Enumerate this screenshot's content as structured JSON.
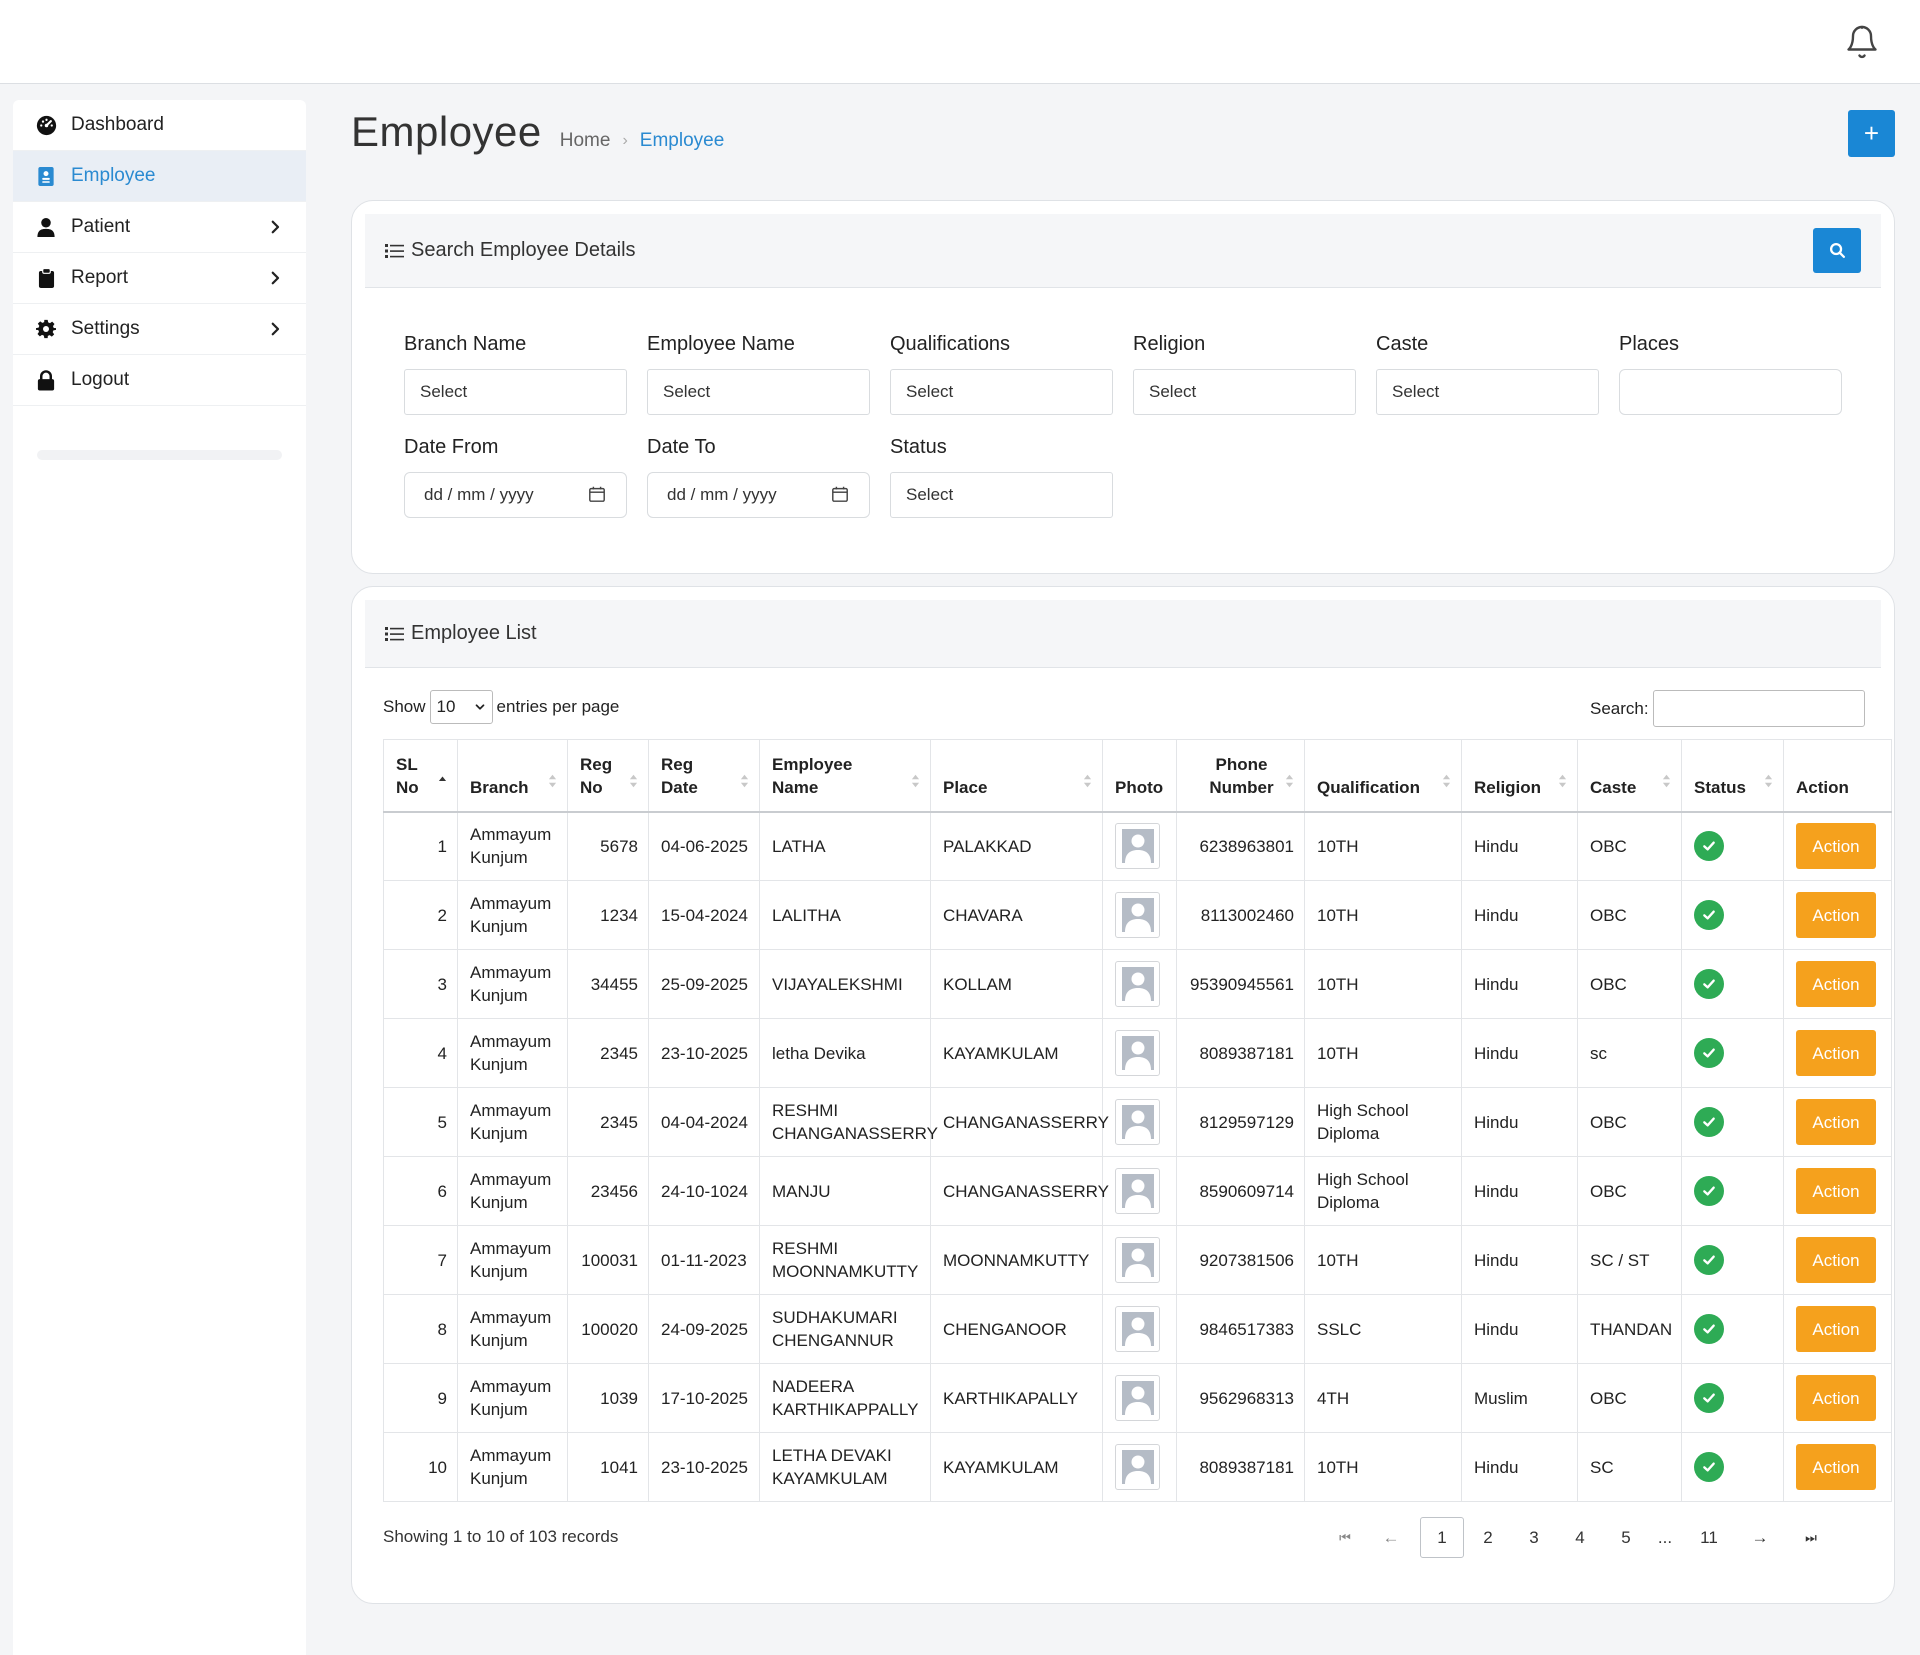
{
  "sidebar": {
    "items": [
      {
        "label": "Dashboard",
        "icon": "dashboard-icon",
        "active": false,
        "has_children": false
      },
      {
        "label": "Employee",
        "icon": "id-badge-icon",
        "active": true,
        "has_children": false
      },
      {
        "label": "Patient",
        "icon": "user-icon",
        "active": false,
        "has_children": true
      },
      {
        "label": "Report",
        "icon": "clipboard-icon",
        "active": false,
        "has_children": true
      },
      {
        "label": "Settings",
        "icon": "gear-icon",
        "active": false,
        "has_children": true
      },
      {
        "label": "Logout",
        "icon": "lock-icon",
        "active": false,
        "has_children": false
      }
    ]
  },
  "header": {
    "title": "Employee",
    "breadcrumb": [
      "Home",
      "Employee"
    ],
    "add_button": "+"
  },
  "search_panel": {
    "title": "Search Employee Details",
    "fields": {
      "branch": {
        "label": "Branch Name",
        "value": "Select"
      },
      "employee": {
        "label": "Employee Name",
        "value": "Select"
      },
      "qualifications": {
        "label": "Qualifications",
        "value": "Select"
      },
      "religion": {
        "label": "Religion",
        "value": "Select"
      },
      "caste": {
        "label": "Caste",
        "value": "Select"
      },
      "places": {
        "label": "Places",
        "value": ""
      },
      "date_from": {
        "label": "Date From",
        "value": "dd / mm / yyyy"
      },
      "date_to": {
        "label": "Date To",
        "value": "dd / mm / yyyy"
      },
      "status": {
        "label": "Status",
        "value": "Select"
      }
    }
  },
  "list_panel": {
    "title": "Employee List",
    "show_label": "Show",
    "page_size": "10",
    "entries_label": "entries per page",
    "search_label": "Search:",
    "columns": [
      "SL No",
      "Branch",
      "Reg No",
      "Reg Date",
      "Employee Name",
      "Place",
      "Photo",
      "Phone Number",
      "Qualification",
      "Religion",
      "Caste",
      "Status",
      "Action"
    ],
    "rows": [
      {
        "sl": "1",
        "branch": "Ammayum Kunjum",
        "reg_no": "5678",
        "reg_date": "04-06-2025",
        "name": "LATHA",
        "place": "PALAKKAD",
        "phone": "6238963801",
        "qualification": "10TH",
        "religion": "Hindu",
        "caste": "OBC",
        "action": "Action"
      },
      {
        "sl": "2",
        "branch": "Ammayum Kunjum",
        "reg_no": "1234",
        "reg_date": "15-04-2024",
        "name": "LALITHA",
        "place": "CHAVARA",
        "phone": "8113002460",
        "qualification": "10TH",
        "religion": "Hindu",
        "caste": "OBC",
        "action": "Action"
      },
      {
        "sl": "3",
        "branch": "Ammayum Kunjum",
        "reg_no": "34455",
        "reg_date": "25-09-2025",
        "name": "VIJAYALEKSHMI",
        "place": "KOLLAM",
        "phone": "95390945561",
        "qualification": "10TH",
        "religion": "Hindu",
        "caste": "OBC",
        "action": "Action"
      },
      {
        "sl": "4",
        "branch": "Ammayum Kunjum",
        "reg_no": "2345",
        "reg_date": "23-10-2025",
        "name": "letha Devika",
        "place": "KAYAMKULAM",
        "phone": "8089387181",
        "qualification": "10TH",
        "religion": "Hindu",
        "caste": "sc",
        "action": "Action"
      },
      {
        "sl": "5",
        "branch": "Ammayum Kunjum",
        "reg_no": "2345",
        "reg_date": "04-04-2024",
        "name": "RESHMI CHANGANASSERRY",
        "place": "CHANGANASSERRY",
        "phone": "8129597129",
        "qualification": "High School Diploma",
        "religion": "Hindu",
        "caste": "OBC",
        "action": "Action"
      },
      {
        "sl": "6",
        "branch": "Ammayum Kunjum",
        "reg_no": "23456",
        "reg_date": "24-10-1024",
        "name": "MANJU",
        "place": "CHANGANASSERRY",
        "phone": "8590609714",
        "qualification": "High School Diploma",
        "religion": "Hindu",
        "caste": "OBC",
        "action": "Action"
      },
      {
        "sl": "7",
        "branch": "Ammayum Kunjum",
        "reg_no": "100031",
        "reg_date": "01-11-2023",
        "name": "RESHMI MOONNAMKUTTY",
        "place": "MOONNAMKUTTY",
        "phone": "9207381506",
        "qualification": "10TH",
        "religion": "Hindu",
        "caste": "SC / ST",
        "action": "Action"
      },
      {
        "sl": "8",
        "branch": "Ammayum Kunjum",
        "reg_no": "100020",
        "reg_date": "24-09-2025",
        "name": "SUDHAKUMARI CHENGANNUR",
        "place": "CHENGANOOR",
        "phone": "9846517383",
        "qualification": "SSLC",
        "religion": "Hindu",
        "caste": "THANDAN",
        "action": "Action"
      },
      {
        "sl": "9",
        "branch": "Ammayum Kunjum",
        "reg_no": "1039",
        "reg_date": "17-10-2025",
        "name": "NADEERA KARTHIKAPPALLY",
        "place": "KARTHIKAPALLY",
        "phone": "9562968313",
        "qualification": "4TH",
        "religion": "Muslim",
        "caste": "OBC",
        "action": "Action"
      },
      {
        "sl": "10",
        "branch": "Ammayum Kunjum",
        "reg_no": "1041",
        "reg_date": "23-10-2025",
        "name": "LETHA DEVAKI KAYAMKULAM",
        "place": "KAYAMKULAM",
        "phone": "8089387181",
        "qualification": "10TH",
        "religion": "Hindu",
        "caste": "SC",
        "action": "Action"
      }
    ],
    "info": "Showing 1 to 10 of 103 records",
    "pagination": {
      "first": "⏮",
      "prev": "←",
      "pages": [
        "1",
        "2",
        "3",
        "4",
        "5",
        "...",
        "11"
      ],
      "current": "1",
      "next": "→",
      "last": "⏭"
    }
  },
  "colors": {
    "accent": "#1a87d5",
    "active_text": "#2a8ad1",
    "action_button": "#f5a11d",
    "status_ok": "#2eab55"
  }
}
